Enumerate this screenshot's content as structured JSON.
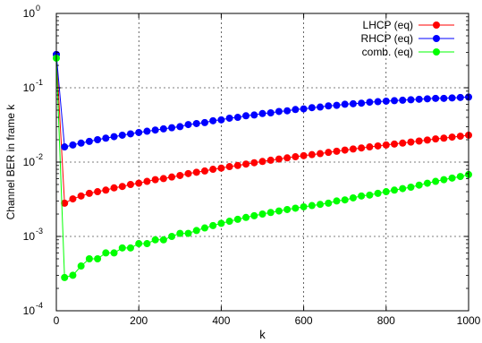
{
  "chart_data": {
    "type": "scatter",
    "title": "",
    "xlabel": "k",
    "ylabel": "Channel BER in frame k",
    "xlim": [
      0,
      1000
    ],
    "ylim": [
      0.0001,
      1
    ],
    "yscale": "log",
    "grid": true,
    "legend_position": "top-right",
    "x_ticks": [
      "0",
      "200",
      "400",
      "600",
      "800",
      "1000"
    ],
    "y_ticks": [
      {
        "base": "10",
        "exp": "-4"
      },
      {
        "base": "10",
        "exp": "-3"
      },
      {
        "base": "10",
        "exp": "-2"
      },
      {
        "base": "10",
        "exp": "-1"
      },
      {
        "base": "10",
        "exp": "0"
      }
    ],
    "series": [
      {
        "name": "LHCP (eq)",
        "color": "#ff0000",
        "x": [
          0,
          20,
          40,
          60,
          80,
          100,
          120,
          140,
          160,
          180,
          200,
          220,
          240,
          260,
          280,
          300,
          320,
          340,
          360,
          380,
          400,
          420,
          440,
          460,
          480,
          500,
          520,
          540,
          560,
          580,
          600,
          620,
          640,
          660,
          680,
          700,
          720,
          740,
          760,
          780,
          800,
          820,
          840,
          860,
          880,
          900,
          920,
          940,
          960,
          980,
          1000
        ],
        "y": [
          0.28,
          0.0028,
          0.0032,
          0.0035,
          0.0038,
          0.004,
          0.0042,
          0.0045,
          0.0047,
          0.005,
          0.0052,
          0.0055,
          0.0058,
          0.006,
          0.0063,
          0.0066,
          0.007,
          0.0073,
          0.0076,
          0.008,
          0.0083,
          0.0087,
          0.009,
          0.0094,
          0.0098,
          0.0102,
          0.0106,
          0.011,
          0.0114,
          0.0118,
          0.0122,
          0.0126,
          0.013,
          0.0135,
          0.014,
          0.0145,
          0.015,
          0.0155,
          0.016,
          0.0165,
          0.017,
          0.0175,
          0.018,
          0.0186,
          0.0192,
          0.0198,
          0.0205,
          0.021,
          0.0217,
          0.0223,
          0.023
        ]
      },
      {
        "name": "RHCP (eq)",
        "color": "#0000ff",
        "x": [
          0,
          20,
          40,
          60,
          80,
          100,
          120,
          140,
          160,
          180,
          200,
          220,
          240,
          260,
          280,
          300,
          320,
          340,
          360,
          380,
          400,
          420,
          440,
          460,
          480,
          500,
          520,
          540,
          560,
          580,
          600,
          620,
          640,
          660,
          680,
          700,
          720,
          740,
          760,
          780,
          800,
          820,
          840,
          860,
          880,
          900,
          920,
          940,
          960,
          980,
          1000
        ],
        "y": [
          0.28,
          0.016,
          0.017,
          0.018,
          0.019,
          0.02,
          0.021,
          0.022,
          0.023,
          0.024,
          0.025,
          0.026,
          0.027,
          0.028,
          0.029,
          0.03,
          0.032,
          0.033,
          0.034,
          0.036,
          0.037,
          0.039,
          0.04,
          0.042,
          0.043,
          0.045,
          0.046,
          0.048,
          0.049,
          0.051,
          0.052,
          0.054,
          0.055,
          0.057,
          0.058,
          0.06,
          0.061,
          0.062,
          0.064,
          0.065,
          0.066,
          0.067,
          0.068,
          0.069,
          0.07,
          0.071,
          0.072,
          0.072,
          0.073,
          0.074,
          0.075
        ]
      },
      {
        "name": "comb. (eq)",
        "color": "#00ff00",
        "x": [
          0,
          20,
          40,
          60,
          80,
          100,
          120,
          140,
          160,
          180,
          200,
          220,
          240,
          260,
          280,
          300,
          320,
          340,
          360,
          380,
          400,
          420,
          440,
          460,
          480,
          500,
          520,
          540,
          560,
          580,
          600,
          620,
          640,
          660,
          680,
          700,
          720,
          740,
          760,
          780,
          800,
          820,
          840,
          860,
          880,
          900,
          920,
          940,
          960,
          980,
          1000
        ],
        "y": [
          0.25,
          0.00028,
          0.0003,
          0.0004,
          0.0005,
          0.0005,
          0.0006,
          0.0006,
          0.0007,
          0.0007,
          0.0008,
          0.0008,
          0.0009,
          0.0009,
          0.001,
          0.0011,
          0.0011,
          0.0012,
          0.0013,
          0.0014,
          0.0015,
          0.0016,
          0.0017,
          0.0018,
          0.0019,
          0.002,
          0.0021,
          0.0022,
          0.0023,
          0.0024,
          0.0025,
          0.0026,
          0.0027,
          0.0028,
          0.003,
          0.0031,
          0.0033,
          0.0035,
          0.0036,
          0.0038,
          0.004,
          0.0042,
          0.0044,
          0.0046,
          0.0049,
          0.0052,
          0.0055,
          0.0058,
          0.0061,
          0.0064,
          0.0068
        ]
      }
    ]
  }
}
